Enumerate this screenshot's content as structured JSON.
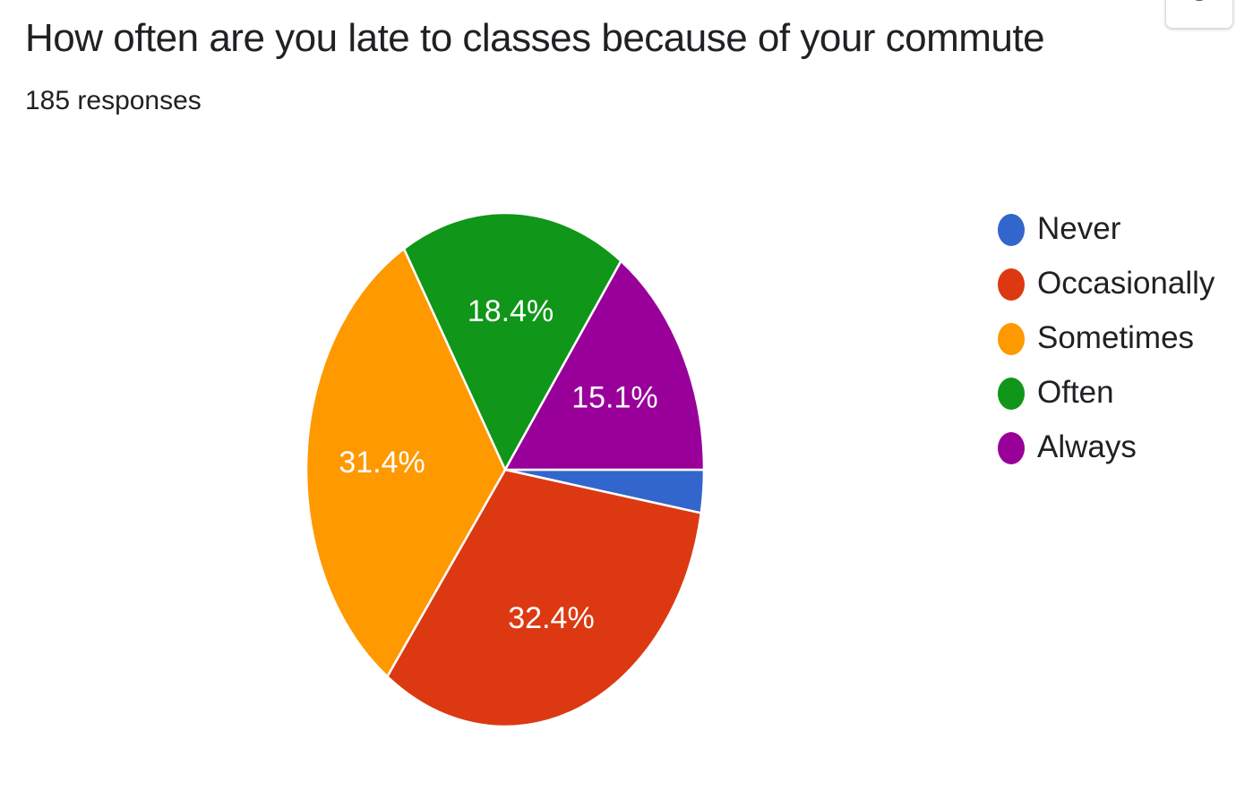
{
  "header": {
    "title": "How often are you late to classes because of your commute",
    "responses": "185 responses"
  },
  "toolbar": {
    "copy_icon": "copy-icon"
  },
  "chart_data": {
    "type": "pie",
    "title": "How often are you late to classes because of your commute",
    "subtitle": "185 responses",
    "legend_position": "right",
    "slices": [
      {
        "label": "Never",
        "value": 2.7,
        "display": "",
        "color": "#3366cc"
      },
      {
        "label": "Occasionally",
        "value": 32.4,
        "display": "32.4%",
        "color": "#dc3912"
      },
      {
        "label": "Sometimes",
        "value": 31.4,
        "display": "31.4%",
        "color": "#ff9900"
      },
      {
        "label": "Often",
        "value": 18.4,
        "display": "18.4%",
        "color": "#109618"
      },
      {
        "label": "Always",
        "value": 15.1,
        "display": "15.1%",
        "color": "#990099"
      }
    ]
  }
}
